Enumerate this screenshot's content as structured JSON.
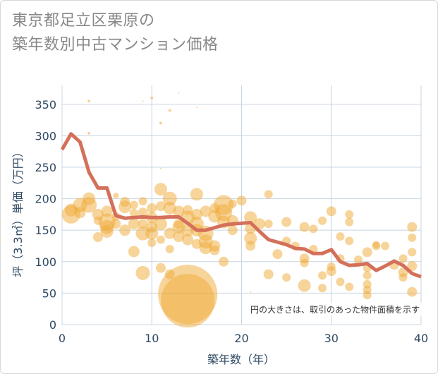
{
  "title": {
    "line1": "東京都足立区栗原の",
    "line2": "築年数別中古マンション価格"
  },
  "colors": {
    "bubble": "#f0a935",
    "line": "#d4705a",
    "grid": "#c8d4e0",
    "text": "#2f4a63"
  },
  "chart_data": {
    "type": "scatter",
    "xlabel": "築年数（年）",
    "ylabel": "坪（3.3㎡）単価（万円）",
    "xlim": [
      0,
      40
    ],
    "ylim": [
      0,
      380
    ],
    "xticks": [
      0,
      10,
      20,
      30,
      40
    ],
    "yticks": [
      0,
      50,
      100,
      150,
      200,
      250,
      300,
      350
    ],
    "grid": true,
    "annotation": "円の大きさは、取引のあった物件面積を示す",
    "average_line": {
      "x": [
        0,
        1,
        2,
        3,
        4,
        5,
        6,
        7,
        8,
        9,
        10,
        11,
        12,
        13,
        14,
        15,
        16,
        17,
        18,
        19,
        20,
        21,
        22,
        23,
        24,
        25,
        26,
        27,
        28,
        29,
        30,
        31,
        32,
        33,
        34,
        35,
        36,
        37,
        38,
        39,
        40
      ],
      "y": [
        278,
        303,
        290,
        242,
        217,
        217,
        173,
        169,
        170,
        171,
        170,
        170,
        171,
        171,
        161,
        150,
        150,
        154,
        158,
        160,
        161,
        162,
        148,
        135,
        131,
        127,
        121,
        120,
        113,
        113,
        119,
        100,
        94,
        95,
        97,
        86,
        93,
        101,
        94,
        81,
        76
      ]
    },
    "points": [
      {
        "x": 1,
        "y": 175,
        "s": 13
      },
      {
        "x": 1,
        "y": 182,
        "s": 9
      },
      {
        "x": 2,
        "y": 190,
        "s": 10
      },
      {
        "x": 2,
        "y": 178,
        "s": 8
      },
      {
        "x": 3,
        "y": 355,
        "s": 2
      },
      {
        "x": 3,
        "y": 304,
        "s": 2
      },
      {
        "x": 3,
        "y": 200,
        "s": 9
      },
      {
        "x": 3,
        "y": 190,
        "s": 11
      },
      {
        "x": 4,
        "y": 175,
        "s": 8
      },
      {
        "x": 4,
        "y": 139,
        "s": 7
      },
      {
        "x": 4,
        "y": 165,
        "s": 6
      },
      {
        "x": 5,
        "y": 155,
        "s": 10
      },
      {
        "x": 5,
        "y": 148,
        "s": 9
      },
      {
        "x": 5,
        "y": 180,
        "s": 8
      },
      {
        "x": 5,
        "y": 163,
        "s": 12
      },
      {
        "x": 6,
        "y": 205,
        "s": 4
      },
      {
        "x": 6,
        "y": 160,
        "s": 7
      },
      {
        "x": 6,
        "y": 172,
        "s": 6
      },
      {
        "x": 7,
        "y": 195,
        "s": 7
      },
      {
        "x": 7,
        "y": 187,
        "s": 9
      },
      {
        "x": 7,
        "y": 150,
        "s": 8
      },
      {
        "x": 8,
        "y": 160,
        "s": 8
      },
      {
        "x": 8,
        "y": 190,
        "s": 6
      },
      {
        "x": 8,
        "y": 116,
        "s": 8
      },
      {
        "x": 8,
        "y": 177,
        "s": 6
      },
      {
        "x": 9,
        "y": 355,
        "s": 1
      },
      {
        "x": 9,
        "y": 145,
        "s": 10
      },
      {
        "x": 9,
        "y": 160,
        "s": 7
      },
      {
        "x": 9,
        "y": 82,
        "s": 10
      },
      {
        "x": 9,
        "y": 178,
        "s": 7
      },
      {
        "x": 9,
        "y": 196,
        "s": 6
      },
      {
        "x": 10,
        "y": 360,
        "s": 2
      },
      {
        "x": 10,
        "y": 145,
        "s": 9
      },
      {
        "x": 10,
        "y": 170,
        "s": 8
      },
      {
        "x": 10,
        "y": 185,
        "s": 7
      },
      {
        "x": 10,
        "y": 130,
        "s": 6
      },
      {
        "x": 10,
        "y": 155,
        "s": 8
      },
      {
        "x": 11,
        "y": 320,
        "s": 2
      },
      {
        "x": 11,
        "y": 248,
        "s": 1
      },
      {
        "x": 11,
        "y": 215,
        "s": 9
      },
      {
        "x": 11,
        "y": 188,
        "s": 7
      },
      {
        "x": 11,
        "y": 160,
        "s": 9
      },
      {
        "x": 11,
        "y": 135,
        "s": 6
      },
      {
        "x": 11,
        "y": 90,
        "s": 7
      },
      {
        "x": 12,
        "y": 340,
        "s": 2
      },
      {
        "x": 12,
        "y": 200,
        "s": 10
      },
      {
        "x": 12,
        "y": 185,
        "s": 9
      },
      {
        "x": 12,
        "y": 145,
        "s": 8
      },
      {
        "x": 12,
        "y": 120,
        "s": 6
      },
      {
        "x": 12,
        "y": 80,
        "s": 7
      },
      {
        "x": 13,
        "y": 368,
        "s": 1
      },
      {
        "x": 13,
        "y": 180,
        "s": 8
      },
      {
        "x": 13,
        "y": 155,
        "s": 9
      },
      {
        "x": 13,
        "y": 140,
        "s": 8
      },
      {
        "x": 13,
        "y": 160,
        "s": 7
      },
      {
        "x": 14,
        "y": 48,
        "s": 42
      },
      {
        "x": 14,
        "y": 38,
        "s": 38
      },
      {
        "x": 14,
        "y": 170,
        "s": 10
      },
      {
        "x": 14,
        "y": 150,
        "s": 9
      },
      {
        "x": 14,
        "y": 135,
        "s": 8
      },
      {
        "x": 14,
        "y": 182,
        "s": 7
      },
      {
        "x": 15,
        "y": 345,
        "s": 1
      },
      {
        "x": 15,
        "y": 207,
        "s": 9
      },
      {
        "x": 15,
        "y": 175,
        "s": 8
      },
      {
        "x": 15,
        "y": 160,
        "s": 10
      },
      {
        "x": 15,
        "y": 150,
        "s": 9
      },
      {
        "x": 15,
        "y": 128,
        "s": 7
      },
      {
        "x": 16,
        "y": 180,
        "s": 8
      },
      {
        "x": 16,
        "y": 145,
        "s": 11
      },
      {
        "x": 16,
        "y": 132,
        "s": 10
      },
      {
        "x": 16,
        "y": 122,
        "s": 9
      },
      {
        "x": 17,
        "y": 185,
        "s": 7
      },
      {
        "x": 17,
        "y": 172,
        "s": 9
      },
      {
        "x": 17,
        "y": 125,
        "s": 8
      },
      {
        "x": 17,
        "y": 118,
        "s": 7
      },
      {
        "x": 18,
        "y": 190,
        "s": 14
      },
      {
        "x": 18,
        "y": 178,
        "s": 12
      },
      {
        "x": 18,
        "y": 163,
        "s": 9
      },
      {
        "x": 18,
        "y": 100,
        "s": 7
      },
      {
        "x": 19,
        "y": 165,
        "s": 8
      },
      {
        "x": 19,
        "y": 150,
        "s": 7
      },
      {
        "x": 19,
        "y": 192,
        "s": 6
      },
      {
        "x": 20,
        "y": 197,
        "s": 7
      },
      {
        "x": 21,
        "y": 170,
        "s": 9
      },
      {
        "x": 21,
        "y": 153,
        "s": 8
      },
      {
        "x": 21,
        "y": 137,
        "s": 9
      },
      {
        "x": 21,
        "y": 125,
        "s": 7
      },
      {
        "x": 21,
        "y": 52,
        "s": 1
      },
      {
        "x": 22,
        "y": 160,
        "s": 8
      },
      {
        "x": 23,
        "y": 207,
        "s": 6
      },
      {
        "x": 23,
        "y": 160,
        "s": 6
      },
      {
        "x": 23,
        "y": 80,
        "s": 7
      },
      {
        "x": 24,
        "y": 112,
        "s": 7
      },
      {
        "x": 25,
        "y": 163,
        "s": 7
      },
      {
        "x": 25,
        "y": 133,
        "s": 6
      },
      {
        "x": 25,
        "y": 75,
        "s": 6
      },
      {
        "x": 26,
        "y": 125,
        "s": 6
      },
      {
        "x": 27,
        "y": 155,
        "s": 7
      },
      {
        "x": 27,
        "y": 105,
        "s": 7
      },
      {
        "x": 27,
        "y": 98,
        "s": 6
      },
      {
        "x": 27,
        "y": 62,
        "s": 9
      },
      {
        "x": 28,
        "y": 152,
        "s": 6
      },
      {
        "x": 28,
        "y": 120,
        "s": 6
      },
      {
        "x": 29,
        "y": 165,
        "s": 6
      },
      {
        "x": 29,
        "y": 78,
        "s": 6
      },
      {
        "x": 29,
        "y": 58,
        "s": 6
      },
      {
        "x": 30,
        "y": 180,
        "s": 7
      },
      {
        "x": 30,
        "y": 92,
        "s": 6
      },
      {
        "x": 30,
        "y": 85,
        "s": 7
      },
      {
        "x": 31,
        "y": 140,
        "s": 6
      },
      {
        "x": 31,
        "y": 105,
        "s": 6
      },
      {
        "x": 31,
        "y": 68,
        "s": 6
      },
      {
        "x": 32,
        "y": 175,
        "s": 6
      },
      {
        "x": 32,
        "y": 163,
        "s": 6
      },
      {
        "x": 32,
        "y": 133,
        "s": 6
      },
      {
        "x": 32,
        "y": 60,
        "s": 6
      },
      {
        "x": 33,
        "y": 103,
        "s": 6
      },
      {
        "x": 34,
        "y": 115,
        "s": 7
      },
      {
        "x": 34,
        "y": 90,
        "s": 6
      },
      {
        "x": 34,
        "y": 78,
        "s": 6
      },
      {
        "x": 34,
        "y": 64,
        "s": 6
      },
      {
        "x": 34,
        "y": 55,
        "s": 6
      },
      {
        "x": 34,
        "y": 47,
        "s": 6
      },
      {
        "x": 35,
        "y": 125,
        "s": 6
      },
      {
        "x": 35,
        "y": 127,
        "s": 5
      },
      {
        "x": 36,
        "y": 125,
        "s": 6
      },
      {
        "x": 37,
        "y": 95,
        "s": 7
      },
      {
        "x": 38,
        "y": 105,
        "s": 6
      },
      {
        "x": 38,
        "y": 83,
        "s": 7
      },
      {
        "x": 38,
        "y": 75,
        "s": 6
      },
      {
        "x": 39,
        "y": 155,
        "s": 7
      },
      {
        "x": 39,
        "y": 138,
        "s": 6
      },
      {
        "x": 39,
        "y": 115,
        "s": 6
      },
      {
        "x": 39,
        "y": 93,
        "s": 7
      },
      {
        "x": 39,
        "y": 52,
        "s": 7
      }
    ]
  }
}
